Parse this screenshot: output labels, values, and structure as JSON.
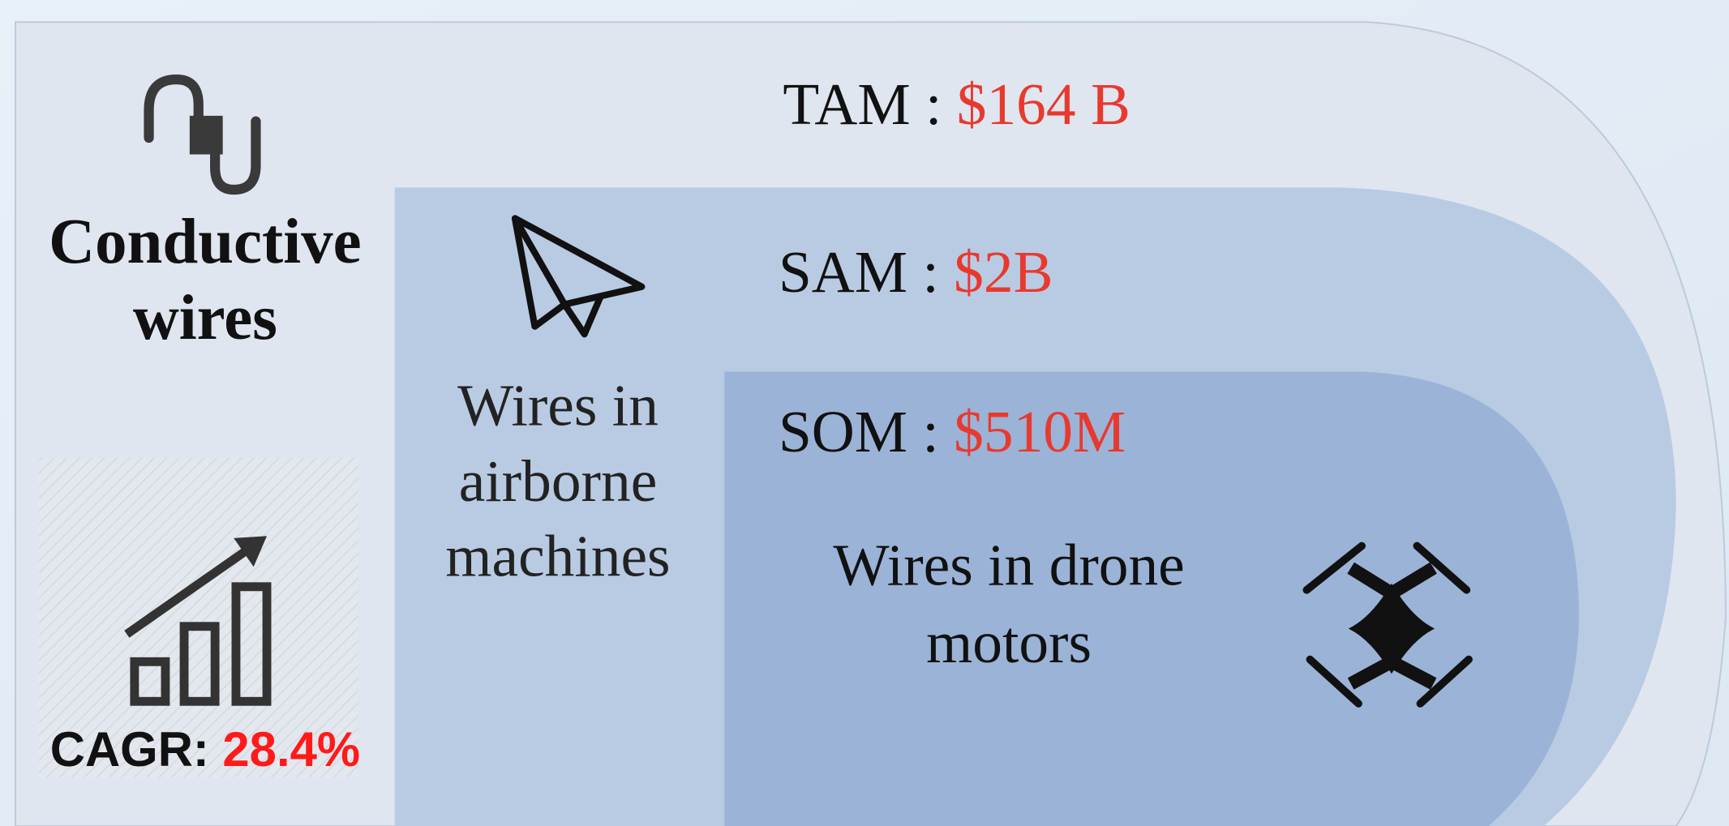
{
  "tam": {
    "label": "TAM :",
    "value": "$164 B",
    "description": [
      "Conductive",
      "wires"
    ]
  },
  "sam": {
    "label": "SAM :",
    "value": "$2B",
    "description": [
      "Wires in",
      "airborne",
      "machines"
    ]
  },
  "som": {
    "label": "SOM :",
    "value": "$510M",
    "description": [
      "Wires in drone",
      "motors"
    ]
  },
  "cagr": {
    "label": "CAGR:",
    "value": "28.4%"
  }
}
